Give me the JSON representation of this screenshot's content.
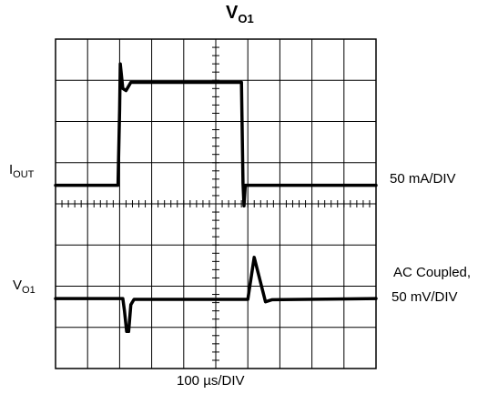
{
  "title": {
    "main": "V",
    "sub": "O1"
  },
  "labels": {
    "iout": {
      "main": "I",
      "sub": "OUT"
    },
    "vo1": {
      "main": "V",
      "sub": "O1"
    },
    "iout_scale": "50 mA/DIV",
    "vo1_coupling": "AC Coupled,",
    "vo1_scale": "50 mV/DIV",
    "timebase": "100 µs/DIV"
  },
  "chart_data": {
    "type": "line",
    "title": "VO1",
    "xlabel": "100 µs/DIV",
    "ylabel": "",
    "xlim": [
      0,
      10
    ],
    "ylim": [
      -4,
      4
    ],
    "grid": true,
    "x_divisions": 10,
    "y_divisions": 8,
    "series": [
      {
        "name": "IOUT",
        "scale": "50 mA/DIV",
        "x": [
          0,
          1.95,
          2.0,
          2.02,
          2.1,
          2.2,
          2.35,
          2.6,
          5.8,
          5.85,
          5.88,
          5.92,
          6.0,
          10
        ],
        "y": [
          0.45,
          0.45,
          2.3,
          3.4,
          2.8,
          2.75,
          2.95,
          2.95,
          2.95,
          0.5,
          -0.05,
          0.45,
          0.45,
          0.45
        ]
      },
      {
        "name": "VO1",
        "scale": "AC Coupled, 50 mV/DIV",
        "x": [
          0,
          2.1,
          2.15,
          2.22,
          2.28,
          2.35,
          2.45,
          6.0,
          6.2,
          6.55,
          6.75,
          10
        ],
        "y": [
          -2.3,
          -2.3,
          -2.6,
          -3.1,
          -3.1,
          -2.45,
          -2.32,
          -2.32,
          -1.3,
          -2.38,
          -2.33,
          -2.3
        ]
      }
    ]
  }
}
